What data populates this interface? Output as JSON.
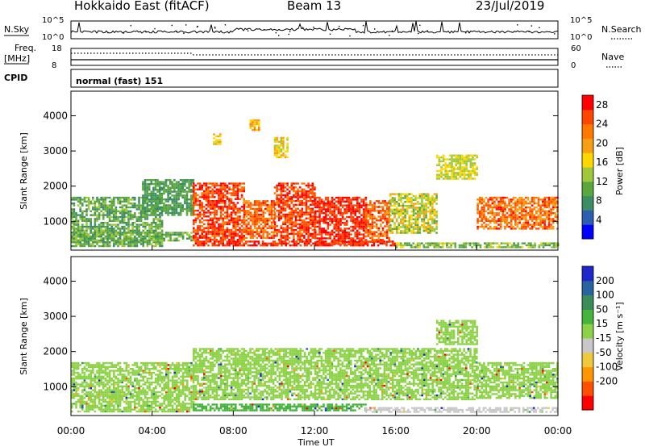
{
  "header": {
    "title": "Hokkaido East (fitACF)",
    "beam": "Beam 13",
    "date": "23/Jul/2019"
  },
  "top_panels": {
    "nsky_label": "N.Sky",
    "nsky_ticks": [
      "10^5",
      "10^0"
    ],
    "nsearch_label": "N.Search",
    "nsearch_ticks": [
      "10^5",
      "10^0"
    ],
    "freq_label_1": "Freq.",
    "freq_label_2": "[MHz]",
    "freq_ticks": [
      "18",
      "8"
    ],
    "nave_label": "Nave",
    "nave_ticks": [
      "60",
      "0"
    ],
    "cpid_label": "CPID",
    "cpid_value": "normal (fast) 151"
  },
  "chart_data": [
    {
      "type": "heatmap",
      "name": "power",
      "ylabel": "Slant Range [km]",
      "ylim": [
        180,
        4700
      ],
      "yticks": [
        "1000",
        "2000",
        "3000",
        "4000"
      ],
      "xlabel": "Time UT",
      "xticks": [
        "00:00",
        "04:00",
        "08:00",
        "12:00",
        "16:00",
        "20:00",
        "00:00"
      ],
      "xlim_hours": [
        0,
        24
      ],
      "colorbar": {
        "label": "Power [dB]",
        "ticks": [
          "4",
          "8",
          "12",
          "16",
          "20",
          "24",
          "28"
        ],
        "range": [
          0,
          30
        ],
        "colors": [
          "#0000ff",
          "#2c5db0",
          "#3c8c64",
          "#5aa83c",
          "#a0c83c",
          "#ffd700",
          "#f5a014",
          "#ff7800",
          "#ff4600",
          "#ff0000"
        ]
      },
      "echo_regions": [
        {
          "t": [
            0.0,
            4.5
          ],
          "r": [
            300,
            1700
          ],
          "level": [
            6,
            14
          ]
        },
        {
          "t": [
            3.5,
            6.0
          ],
          "r": [
            1200,
            2200
          ],
          "level": [
            6,
            12
          ]
        },
        {
          "t": [
            0.0,
            6.0
          ],
          "r": [
            450,
            700
          ],
          "level": [
            8,
            14
          ]
        },
        {
          "t": [
            6.0,
            8.5
          ],
          "r": [
            400,
            2100
          ],
          "level": [
            22,
            30
          ]
        },
        {
          "t": [
            8.5,
            10.0
          ],
          "r": [
            500,
            1600
          ],
          "level": [
            20,
            28
          ]
        },
        {
          "t": [
            10.0,
            12.0
          ],
          "r": [
            400,
            2100
          ],
          "level": [
            22,
            30
          ]
        },
        {
          "t": [
            12.0,
            14.5
          ],
          "r": [
            350,
            1700
          ],
          "level": [
            24,
            30
          ]
        },
        {
          "t": [
            14.5,
            15.7
          ],
          "r": [
            400,
            1600
          ],
          "level": [
            20,
            28
          ]
        },
        {
          "t": [
            15.7,
            18.0
          ],
          "r": [
            650,
            1800
          ],
          "level": [
            10,
            20
          ]
        },
        {
          "t": [
            6.0,
            16.0
          ],
          "r": [
            300,
            450
          ],
          "level": [
            24,
            30
          ]
        },
        {
          "t": [
            16.0,
            24.0
          ],
          "r": [
            250,
            400
          ],
          "level": [
            8,
            16
          ]
        },
        {
          "t": [
            20.0,
            24.0
          ],
          "r": [
            800,
            1700
          ],
          "level": [
            18,
            28
          ]
        },
        {
          "t": [
            18.0,
            20.0
          ],
          "r": [
            2200,
            2900
          ],
          "level": [
            12,
            18
          ]
        },
        {
          "t": [
            8.8,
            9.3
          ],
          "r": [
            3600,
            3900
          ],
          "level": [
            16,
            22
          ]
        },
        {
          "t": [
            7.0,
            7.4
          ],
          "r": [
            3200,
            3500
          ],
          "level": [
            14,
            20
          ]
        },
        {
          "t": [
            10.0,
            10.7
          ],
          "r": [
            2800,
            3400
          ],
          "level": [
            14,
            20
          ]
        }
      ]
    },
    {
      "type": "heatmap",
      "name": "velocity",
      "ylabel": "Slant Range [km]",
      "ylim": [
        180,
        4700
      ],
      "yticks": [
        "1000",
        "2000",
        "3000",
        "4000"
      ],
      "xlabel": "Time UT",
      "xticks": [
        "00:00",
        "04:00",
        "08:00",
        "12:00",
        "16:00",
        "20:00",
        "00:00"
      ],
      "xlim_hours": [
        0,
        24
      ],
      "colorbar": {
        "label": "Velocity [m s⁻¹]",
        "ticks": [
          "200",
          "100",
          "50",
          "15",
          "-15",
          "-50",
          "-100",
          "-200"
        ],
        "colors": [
          "#1e28c8",
          "#2864a0",
          "#3c8c5a",
          "#46b43c",
          "#8cd246",
          "#c8c8c8",
          "#f0c83c",
          "#ff9600",
          "#ff5000",
          "#ff0000"
        ]
      },
      "echo_regions": [
        {
          "t": [
            0.0,
            6.0
          ],
          "r": [
            300,
            1700
          ],
          "v": [
            -15,
            15
          ]
        },
        {
          "t": [
            6.0,
            20.0
          ],
          "r": [
            650,
            2100
          ],
          "v": [
            -15,
            15
          ]
        },
        {
          "t": [
            20.0,
            24.0
          ],
          "r": [
            700,
            1700
          ],
          "v": [
            -15,
            15
          ]
        },
        {
          "t": [
            6.0,
            14.5
          ],
          "r": [
            320,
            520
          ],
          "v": [
            15,
            50
          ]
        },
        {
          "t": [
            14.5,
            24.0
          ],
          "r": [
            280,
            420
          ],
          "v": [
            -50,
            -15
          ]
        },
        {
          "t": [
            18.0,
            20.0
          ],
          "r": [
            2200,
            2900
          ],
          "v": [
            -15,
            15
          ]
        }
      ]
    }
  ]
}
